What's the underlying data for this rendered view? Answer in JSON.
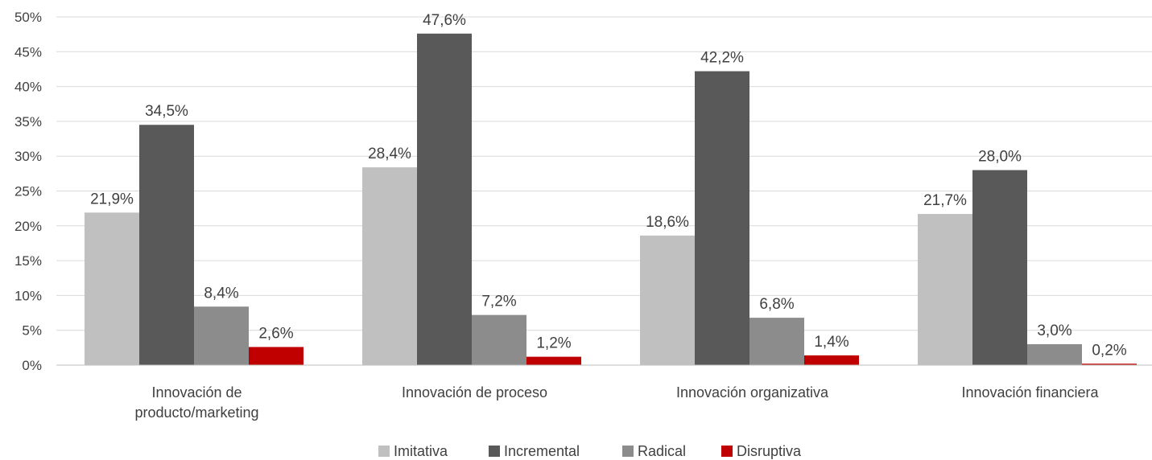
{
  "chart_data": {
    "type": "bar",
    "categories": [
      [
        "Innovación de",
        "producto/marketing"
      ],
      [
        "Innovación de proceso"
      ],
      [
        "Innovación organizativa"
      ],
      [
        "Innovación financiera"
      ]
    ],
    "series": [
      {
        "name": "Imitativa",
        "color": "#c0c0c0",
        "values": [
          21.9,
          28.4,
          18.6,
          21.7
        ],
        "labels": [
          "21,9%",
          "28,4%",
          "18,6%",
          "21,7%"
        ]
      },
      {
        "name": "Incremental",
        "color": "#595959",
        "values": [
          34.5,
          47.6,
          42.2,
          28.0
        ],
        "labels": [
          "34,5%",
          "47,6%",
          "42,2%",
          "28,0%"
        ]
      },
      {
        "name": "Radical",
        "color": "#8c8c8c",
        "values": [
          8.4,
          7.2,
          6.8,
          3.0
        ],
        "labels": [
          "8,4%",
          "7,2%",
          "6,8%",
          "3,0%"
        ]
      },
      {
        "name": "Disruptiva",
        "color": "#c00000",
        "values": [
          2.6,
          1.2,
          1.4,
          0.2
        ],
        "labels": [
          "2,6%",
          "1,2%",
          "1,4%",
          "0,2%"
        ]
      }
    ],
    "y_ticks": [
      "0%",
      "5%",
      "10%",
      "15%",
      "20%",
      "25%",
      "30%",
      "35%",
      "40%",
      "45%",
      "50%"
    ],
    "ylim": [
      0,
      50
    ],
    "grid": true,
    "legend_position": "bottom-center"
  }
}
